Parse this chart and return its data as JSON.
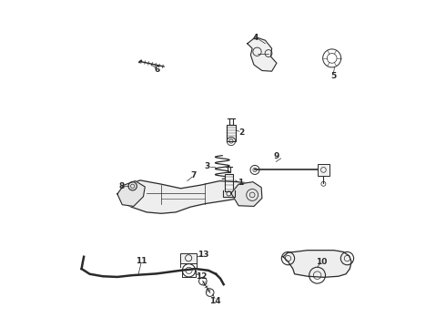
{
  "title": "",
  "background_color": "#ffffff",
  "line_color": "#2a2a2a",
  "label_color": "#1a1a1a",
  "fig_width": 4.9,
  "fig_height": 3.6,
  "dpi": 100
}
